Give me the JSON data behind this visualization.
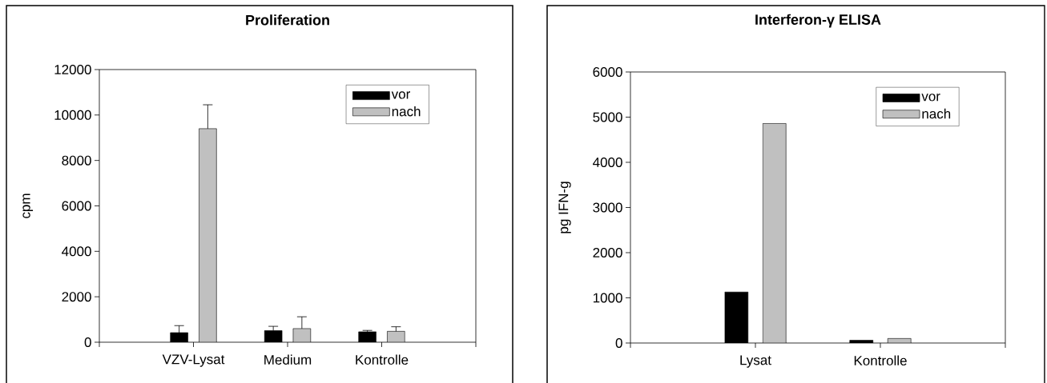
{
  "chart_data": [
    {
      "type": "bar",
      "title": "Proliferation",
      "ylabel": "cpm",
      "categories": [
        "VZV-Lysat",
        "Medium",
        "Kontrolle"
      ],
      "series": [
        {
          "name": "vor",
          "color": "#000000",
          "values": [
            420,
            510,
            460
          ],
          "errors": [
            310,
            190,
            60
          ]
        },
        {
          "name": "nach",
          "color": "#c0c0c0",
          "values": [
            9400,
            600,
            480
          ],
          "errors": [
            1050,
            520,
            200
          ]
        }
      ],
      "ylim": [
        0,
        12000
      ],
      "yticks": [
        0,
        2000,
        4000,
        6000,
        8000,
        10000,
        12000
      ],
      "legend": "top right"
    },
    {
      "type": "bar",
      "title": "Interferon-γ ELISA",
      "ylabel": "pg IFN-g",
      "categories": [
        "Lysat",
        "Kontrolle"
      ],
      "series": [
        {
          "name": "vor",
          "color": "#000000",
          "values": [
            1130,
            60
          ]
        },
        {
          "name": "nach",
          "color": "#c0c0c0",
          "values": [
            4860,
            100
          ]
        }
      ],
      "ylim": [
        0,
        6000
      ],
      "yticks": [
        0,
        1000,
        2000,
        3000,
        4000,
        5000,
        6000
      ],
      "legend": "top right"
    }
  ]
}
